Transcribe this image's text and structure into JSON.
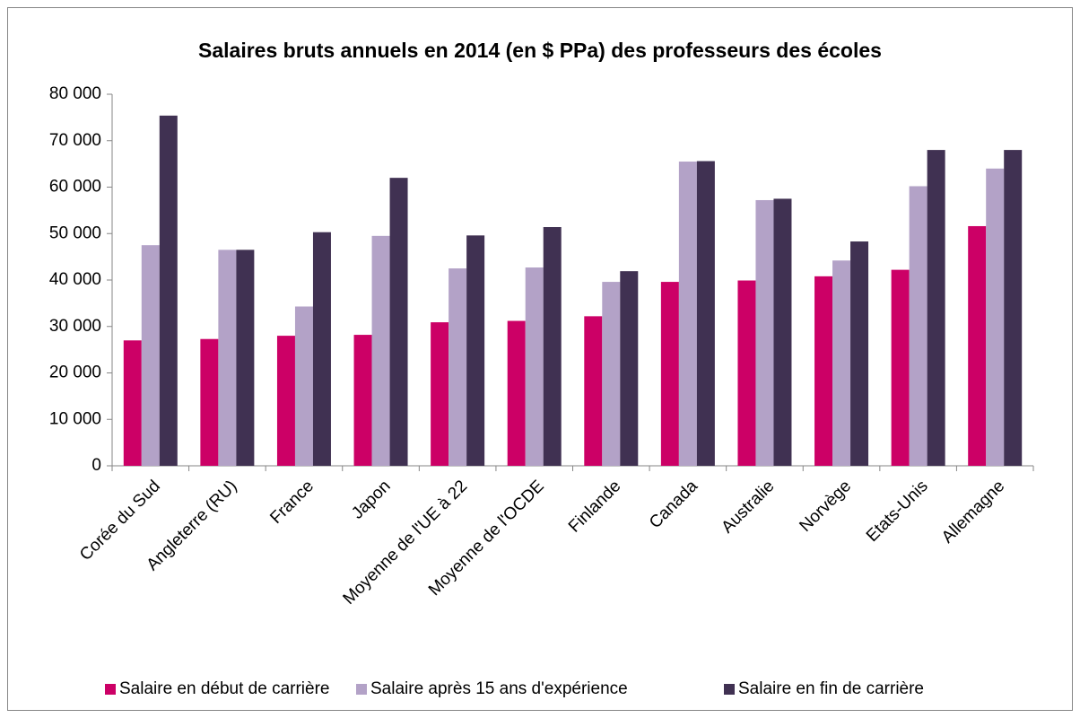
{
  "chart_data": {
    "type": "bar",
    "title": "Salaires bruts annuels en 2014 (en $ PPa) des professeurs des écoles",
    "categories": [
      "Corée du Sud",
      "Angleterre (RU)",
      "France",
      "Japon",
      "Moyenne de l'UE à 22",
      "Moyenne de l'OCDE",
      "Finlande",
      "Canada",
      "Australie",
      "Norvège",
      "Etats-Unis",
      "Allemagne"
    ],
    "series": [
      {
        "name": "Salaire en début de carrière",
        "color": "#cc0066",
        "values": [
          27000,
          27300,
          28000,
          28200,
          30900,
          31200,
          32200,
          39600,
          39900,
          40800,
          42200,
          51600
        ]
      },
      {
        "name": "Salaire après 15 ans d'expérience",
        "color": "#b3a2c7",
        "values": [
          47500,
          46500,
          34300,
          49500,
          42500,
          42700,
          39600,
          65500,
          57200,
          44200,
          60200,
          64000
        ]
      },
      {
        "name": "Salaire en fin de carrière",
        "color": "#403152",
        "values": [
          75400,
          46500,
          50300,
          62000,
          49600,
          51400,
          41900,
          65600,
          57500,
          48300,
          68000,
          68000
        ]
      }
    ],
    "ylim": [
      0,
      80000
    ],
    "yticks": [
      0,
      {
        "value": 10000,
        "label": "10 000"
      },
      {
        "value": 20000,
        "label": "20 000"
      },
      {
        "value": 30000,
        "label": "30 000"
      },
      {
        "value": 40000,
        "label": "40 000"
      },
      {
        "value": 50000,
        "label": "50 000"
      },
      {
        "value": 60000,
        "label": "60 000"
      },
      {
        "value": 70000,
        "label": "70 000"
      },
      {
        "value": 80000,
        "label": "80 000"
      }
    ],
    "grid": false,
    "legend": "bottom"
  }
}
